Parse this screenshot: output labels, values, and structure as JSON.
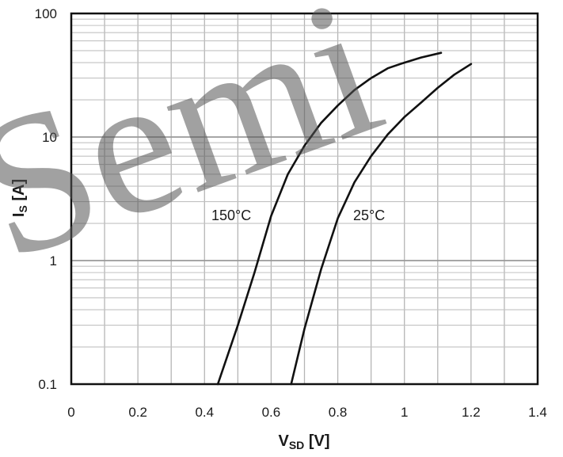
{
  "chart_data": {
    "type": "line",
    "xlabel": {
      "main": "V",
      "sub": "SD",
      "unit": " [V]"
    },
    "ylabel": {
      "main": "I",
      "sub": "S",
      "unit": " [A]"
    },
    "xlim": [
      0,
      1.4
    ],
    "ylim": [
      0.1,
      100
    ],
    "y_scale": "log",
    "grid": true,
    "x_ticks": [
      "0",
      "0.2",
      "0.4",
      "0.6",
      "0.8",
      "1",
      "1.2",
      "1.4"
    ],
    "y_ticks": [
      "0.1",
      "1",
      "10",
      "100"
    ],
    "series": [
      {
        "name": "150°C",
        "color": "#111111",
        "x": [
          0.44,
          0.5,
          0.55,
          0.6,
          0.65,
          0.7,
          0.75,
          0.8,
          0.85,
          0.9,
          0.95,
          1.0,
          1.05,
          1.11
        ],
        "y": [
          0.1,
          0.3,
          0.8,
          2.3,
          5.0,
          8.5,
          13.0,
          18.0,
          24.0,
          30.0,
          36.0,
          40.0,
          44.0,
          48.0
        ]
      },
      {
        "name": "25°C",
        "color": "#111111",
        "x": [
          0.66,
          0.7,
          0.75,
          0.8,
          0.85,
          0.9,
          0.95,
          1.0,
          1.05,
          1.1,
          1.15,
          1.2
        ],
        "y": [
          0.1,
          0.28,
          0.85,
          2.2,
          4.3,
          7.0,
          10.5,
          14.5,
          19.0,
          25.0,
          32.0,
          39.0
        ]
      }
    ]
  },
  "watermark": "Semi"
}
